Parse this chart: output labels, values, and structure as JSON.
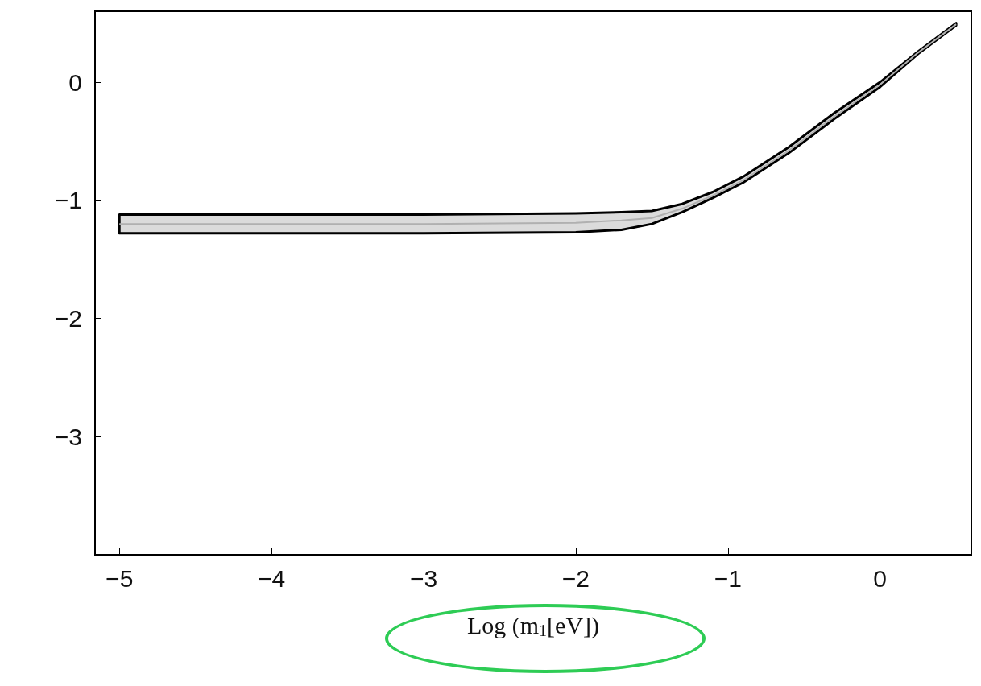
{
  "chart_data": {
    "type": "line",
    "xlabel": "Log (m$_{1}$[eV])",
    "x": [
      -5,
      -4,
      -3,
      -2,
      -1.7,
      -1.5,
      -1.3,
      -1.1,
      -0.9,
      -0.6,
      -0.3,
      0,
      0.25,
      0.5
    ],
    "series": [
      {
        "color": "#b0b0b0",
        "values": [
          -1.2,
          -1.2,
          -1.2,
          -1.19,
          -1.17,
          -1.15,
          -1.07,
          -0.96,
          -0.83,
          -0.58,
          -0.29,
          -0.02,
          0.25,
          0.49
        ],
        "lower": [
          -1.28,
          -1.28,
          -1.28,
          -1.27,
          -1.25,
          -1.2,
          -1.1,
          -0.98,
          -0.85,
          -0.6,
          -0.31,
          -0.04,
          0.24,
          0.48
        ],
        "upper": [
          -1.12,
          -1.12,
          -1.12,
          -1.11,
          -1.1,
          -1.09,
          -1.03,
          -0.93,
          -0.8,
          -0.55,
          -0.26,
          0,
          0.26,
          0.5
        ]
      }
    ],
    "xlim": [
      -5.16,
      0.6
    ],
    "xticks": [
      -5,
      -4,
      -3,
      -2,
      -1,
      0
    ],
    "ylim": [
      -4,
      0.6
    ],
    "yticks": [
      0,
      -1,
      -2,
      -3
    ],
    "grid": false,
    "marker": "none"
  }
}
